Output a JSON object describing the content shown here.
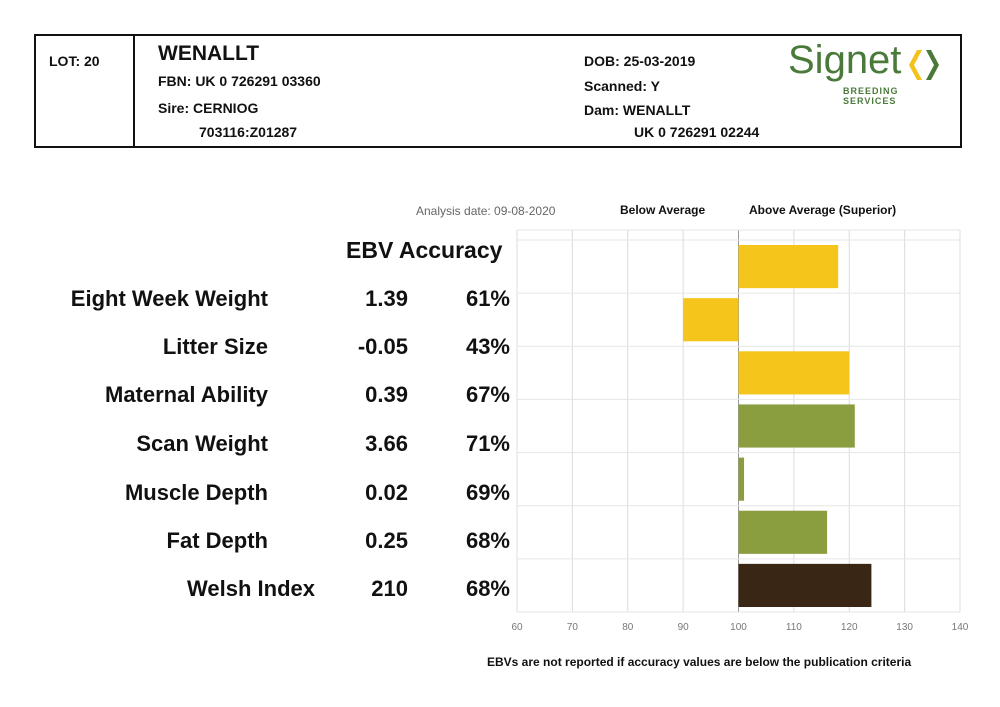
{
  "header": {
    "lot": "LOT: 20",
    "name": "WENALLT",
    "fbn": "FBN: UK 0 726291 03360",
    "sire": "Sire: CERNIOG",
    "sire_id": "703116:Z01287",
    "dob": "DOB: 25-03-2019",
    "scanned": "Scanned: Y",
    "dam": "Dam: WENALLT",
    "dam_id": "UK 0 726291 02244",
    "logo_word": "Signet",
    "logo_sub": "BREEDING SERVICES",
    "logo_colors": {
      "green": "#4a7a3a",
      "yellow": "#f2c21b"
    }
  },
  "legend": {
    "analysis_date": "Analysis date: 09-08-2020",
    "below": "Below Average",
    "above": "Above Average (Superior)"
  },
  "columns_header": "EBV Accuracy",
  "traits": [
    {
      "label": "Eight Week Weight",
      "ebv": "1.39",
      "accuracy": "61%"
    },
    {
      "label": "Litter Size",
      "ebv": "-0.05",
      "accuracy": "43%"
    },
    {
      "label": "Maternal Ability",
      "ebv": "0.39",
      "accuracy": "67%"
    },
    {
      "label": "Scan Weight",
      "ebv": "3.66",
      "accuracy": "71%"
    },
    {
      "label": "Muscle Depth",
      "ebv": "0.02",
      "accuracy": "69%"
    },
    {
      "label": "Fat Depth",
      "ebv": "0.25",
      "accuracy": "68%"
    },
    {
      "label": "Welsh Index",
      "ebv": "210",
      "accuracy": "68%"
    }
  ],
  "footnote": "EBVs are not reported if accuracy values are below the publication criteria",
  "chart_data": {
    "type": "bar",
    "orientation": "horizontal",
    "baseline": 100,
    "categories": [
      "Eight Week Weight",
      "Litter Size",
      "Maternal Ability",
      "Scan Weight",
      "Muscle Depth",
      "Fat Depth",
      "Welsh Index"
    ],
    "values": [
      118,
      90,
      120,
      121,
      101,
      116,
      124
    ],
    "colors": [
      "#f5c51c",
      "#f5c51c",
      "#f5c51c",
      "#8a9e40",
      "#8a9e40",
      "#8a9e40",
      "#3a2614"
    ],
    "xlim": [
      60,
      140
    ],
    "xticks": [
      "60",
      "70",
      "80",
      "90",
      "100",
      "110",
      "120",
      "130",
      "140"
    ],
    "grid": true
  }
}
